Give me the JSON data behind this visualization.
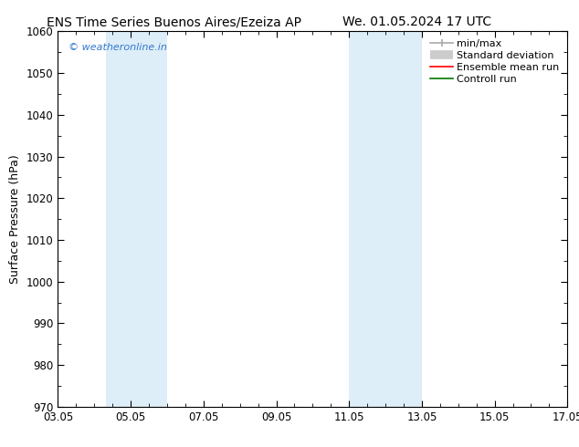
{
  "title_left": "ENS Time Series Buenos Aires/Ezeiza AP",
  "title_right": "We. 01.05.2024 17 UTC",
  "ylabel": "Surface Pressure (hPa)",
  "ylim": [
    970,
    1060
  ],
  "yticks": [
    970,
    980,
    990,
    1000,
    1010,
    1020,
    1030,
    1040,
    1050,
    1060
  ],
  "xlim": [
    0,
    14
  ],
  "xticks": [
    0,
    2,
    4,
    6,
    8,
    10,
    12,
    14
  ],
  "xtick_labels": [
    "03.05",
    "05.05",
    "07.05",
    "09.05",
    "11.05",
    "13.05",
    "15.05",
    "17.05"
  ],
  "watermark": "© weatheronline.in",
  "watermark_color": "#3377cc",
  "background_color": "#ffffff",
  "shaded_regions": [
    {
      "x_start": 1.33,
      "x_end": 3.0
    },
    {
      "x_start": 8.0,
      "x_end": 10.0
    }
  ],
  "shaded_color": "#ddeef8",
  "title_fontsize": 10,
  "axis_label_fontsize": 9,
  "tick_fontsize": 8.5,
  "legend_fontsize": 8
}
